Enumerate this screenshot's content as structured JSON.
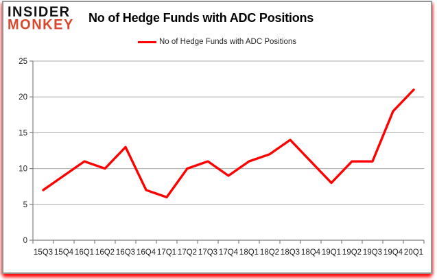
{
  "header": {
    "logo_line1": "INSIDER",
    "logo_line2": "MONKEY",
    "title": "No of Hedge Funds with ADC Positions"
  },
  "legend": {
    "label": "No of Hedge Funds with ADC Positions",
    "swatch_color": "#ff0000"
  },
  "chart_data": {
    "type": "line",
    "title": "No of Hedge Funds with ADC Positions",
    "categories": [
      "15Q3",
      "15Q4",
      "16Q1",
      "16Q2",
      "16Q3",
      "16Q4",
      "17Q1",
      "17Q2",
      "17Q3",
      "17Q4",
      "18Q1",
      "18Q2",
      "18Q3",
      "18Q4",
      "19Q1",
      "19Q2",
      "19Q3",
      "19Q4",
      "20Q1"
    ],
    "series": [
      {
        "name": "No of Hedge Funds with ADC Positions",
        "color": "#ff0000",
        "values": [
          7,
          9,
          11,
          10,
          13,
          7,
          6,
          10,
          11,
          9,
          11,
          12,
          14,
          11,
          8,
          11,
          11,
          18,
          21
        ]
      }
    ],
    "xlabel": "",
    "ylabel": "",
    "ylim": [
      0,
      25
    ],
    "yticks": [
      0,
      5,
      10,
      15,
      20,
      25
    ],
    "grid": true,
    "legend_position": "top-center",
    "marker": "none"
  },
  "colors": {
    "line": "#ff0000",
    "logo_red": "#d9472c",
    "gridline": "#a8a8a8",
    "axis": "#808080",
    "tick_label": "#1f1f1f",
    "card_border": "#949494",
    "glow": "#ff0000"
  }
}
